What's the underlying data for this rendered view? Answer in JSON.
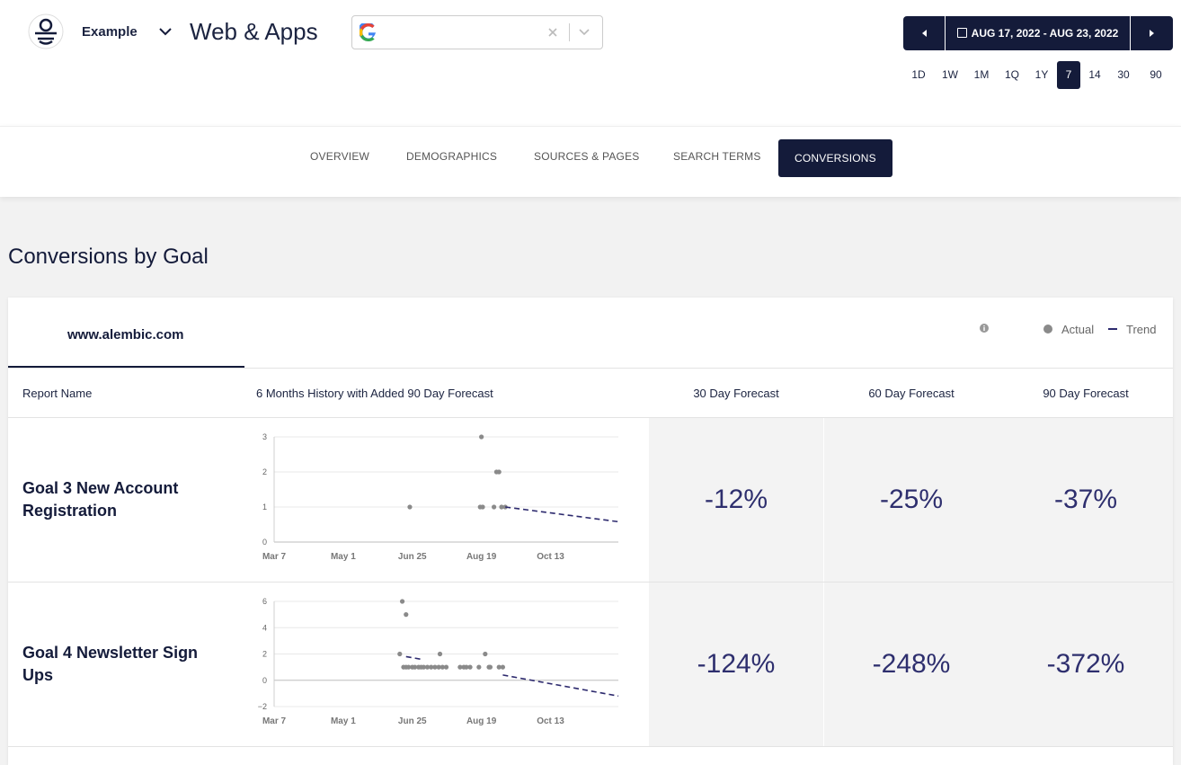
{
  "header": {
    "brand": "Example",
    "title": "Web & Apps",
    "date_range": "AUG 17, 2022 - AUG 23, 2022",
    "ranges": [
      "1D",
      "1W",
      "1M",
      "1Q",
      "1Y",
      "7",
      "14",
      "30",
      "90"
    ],
    "selected_range": 5
  },
  "tabs": {
    "items": [
      "OVERVIEW",
      "DEMOGRAPHICS",
      "SOURCES & PAGES",
      "SEARCH TERMS",
      "CONVERSIONS"
    ],
    "selected": 4
  },
  "section_title": "Conversions by Goal",
  "site_tab": "www.alembic.com",
  "legend": [
    "Actual",
    "Trend"
  ],
  "columns": [
    "Report Name",
    "6 Months History with Added 90 Day Forecast",
    "30 Day Forecast",
    "60 Day Forecast",
    "90 Day Forecast"
  ],
  "rows": [
    {
      "name": "Goal 3 New Account Registration",
      "forecasts": [
        "-12%",
        "-25%",
        "-37%"
      ],
      "chart": {
        "type": "scatter",
        "xlim": [
          66,
          340
        ],
        "ylim": [
          0,
          3
        ],
        "yticks": [
          0,
          1,
          2,
          3
        ],
        "xticks": [
          {
            "value": 66,
            "label": "Mar 7"
          },
          {
            "value": 121,
            "label": "May 1"
          },
          {
            "value": 176,
            "label": "Jun 25"
          },
          {
            "value": 231,
            "label": "Aug 19"
          },
          {
            "value": 286,
            "label": "Oct 13"
          }
        ],
        "series": [
          {
            "kind": "points",
            "color": "#8a8a8a",
            "x": [
              174,
              231,
              230,
              232,
              241,
              243,
              245,
              247,
              250
            ],
            "values": [
              1,
              3,
              1,
              1,
              1,
              2,
              2,
              1,
              1
            ]
          },
          {
            "kind": "trend",
            "color": "#2d2a6e",
            "x": [
              250,
              340
            ],
            "values": [
              1,
              0.58
            ]
          }
        ]
      }
    },
    {
      "name": "Goal 4 Newsletter Sign Ups",
      "forecasts": [
        "-124%",
        "-248%",
        "-372%"
      ],
      "chart": {
        "type": "scatter",
        "xlim": [
          66,
          340
        ],
        "ylim": [
          -2,
          6
        ],
        "yticks": [
          {
            "value": -2,
            "label": "−2"
          },
          0,
          2,
          4,
          6
        ],
        "xticks": [
          {
            "value": 66,
            "label": "Mar 7"
          },
          {
            "value": 121,
            "label": "May 1"
          },
          {
            "value": 176,
            "label": "Jun 25"
          },
          {
            "value": 231,
            "label": "Aug 19"
          },
          {
            "value": 286,
            "label": "Oct 13"
          }
        ],
        "series": [
          {
            "kind": "points",
            "color": "#8a8a8a",
            "x": [
              168,
              171,
              166,
              198,
              234,
              169,
              171,
              173,
              176,
              178,
              181,
              183,
              185,
              188,
              191,
              194,
              197,
              200,
              203,
              214,
              217,
              219,
              222,
              229,
              237,
              238,
              245,
              248
            ],
            "values": [
              6,
              5,
              2,
              2,
              2,
              1,
              1,
              1,
              1,
              1,
              1,
              1,
              1,
              1,
              1,
              1,
              1,
              1,
              1,
              1,
              1,
              1,
              1,
              1,
              1,
              1,
              1,
              1
            ]
          },
          {
            "kind": "trend",
            "color": "#2d2a6e",
            "x": [
              171,
              183
            ],
            "values": [
              1.8,
              1.6
            ]
          },
          {
            "kind": "trend",
            "color": "#2d2a6e",
            "x": [
              248,
              340
            ],
            "values": [
              0.4,
              -1.2
            ]
          }
        ]
      }
    }
  ]
}
